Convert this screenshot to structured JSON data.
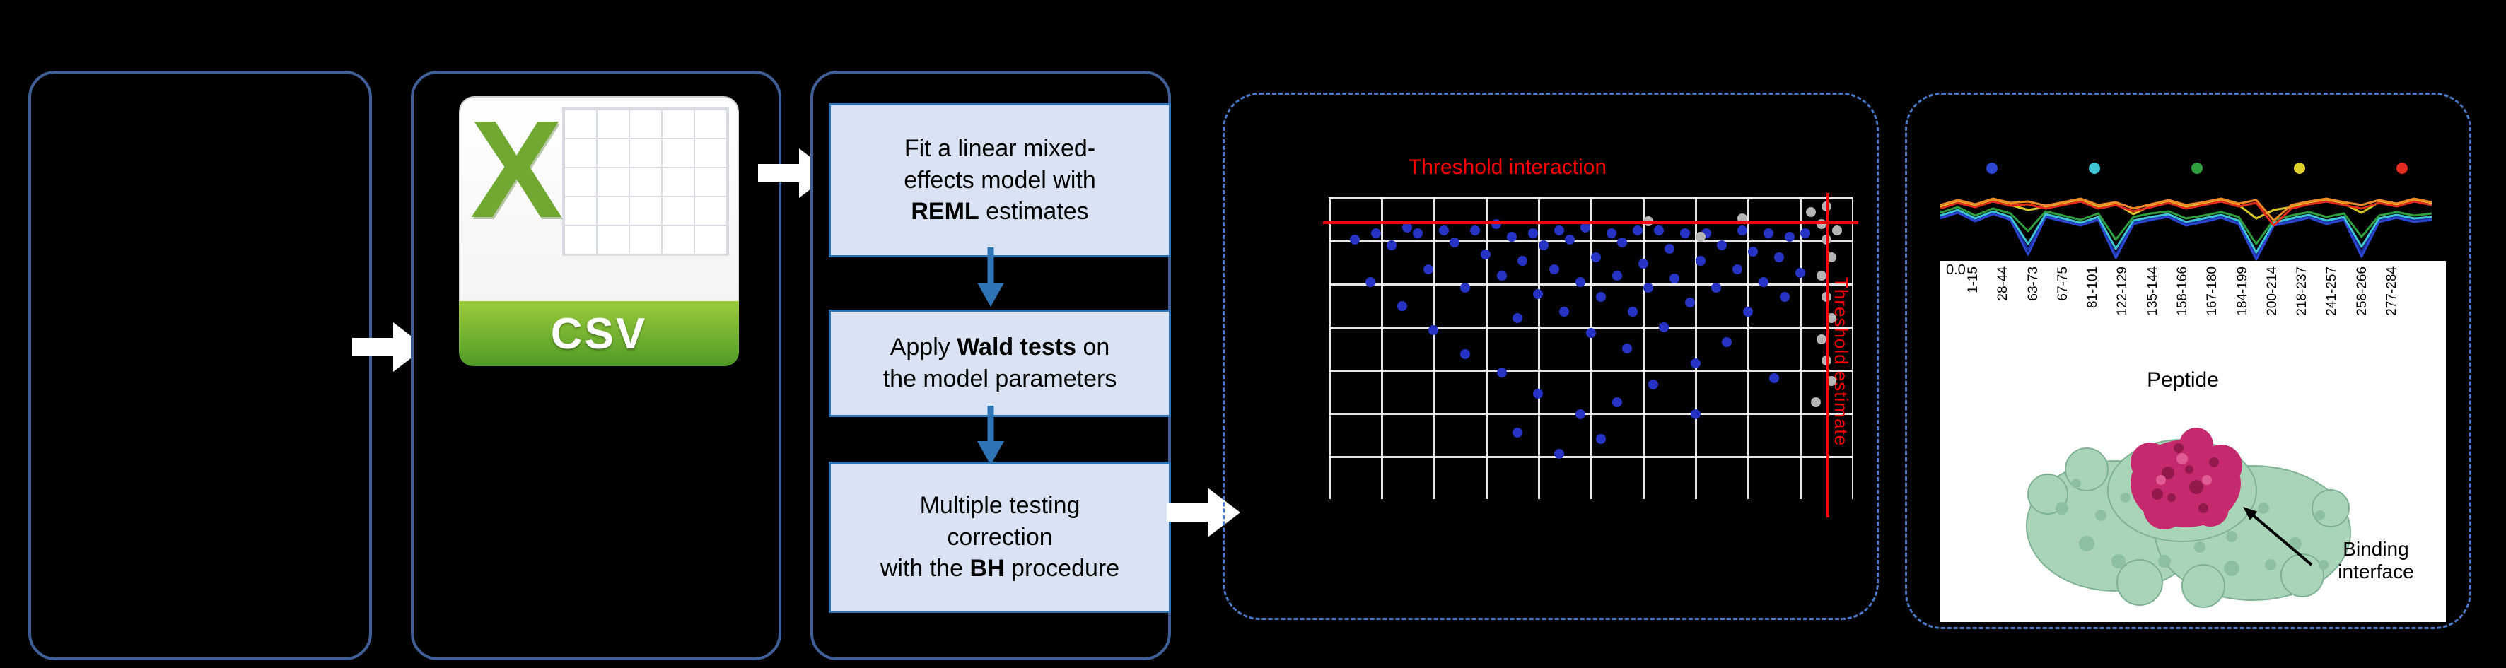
{
  "colors": {
    "background": "#000000",
    "panel_border": "#3f5f96",
    "dashed_border": "#4b79c9",
    "step_fill": "#dae3f3",
    "step_border": "#2e74b5",
    "flow_arrow": "#ffffff",
    "threshold": "#ff0000",
    "csv_green": "#70a832"
  },
  "flow": {
    "csv_icon": {
      "letter": "X",
      "label": "CSV"
    },
    "model_box": {
      "steps": [
        {
          "segments": [
            [
              {
                "t": "Fit a linear mixed-"
              }
            ],
            [
              {
                "t": "effects model with"
              }
            ],
            [
              {
                "t": "REML",
                "b": true
              },
              {
                "t": " estimates"
              }
            ]
          ]
        },
        {
          "segments": [
            [
              {
                "t": "Apply "
              },
              {
                "t": "Wald tests",
                "b": true
              },
              {
                "t": " on"
              }
            ],
            [
              {
                "t": "the model parameters"
              }
            ]
          ]
        },
        {
          "segments": [
            [
              {
                "t": "Multiple testing"
              }
            ],
            [
              {
                "t": "correction"
              }
            ],
            [
              {
                "t": "with the "
              },
              {
                "t": "BH",
                "b": true
              },
              {
                "t": " procedure"
              }
            ]
          ]
        }
      ]
    }
  },
  "chart_data": [
    {
      "type": "scatter",
      "title": "Threshold interaction",
      "side_label": "Threshold estimate",
      "grid": true,
      "colors": {
        "significant": "#2633c4",
        "nonsignificant": "#b5b5b5",
        "threshold": "#ff0000",
        "grid": "#ffffff"
      },
      "threshold_h_pct": 8,
      "threshold_v_pct": 95,
      "points_significant": [
        [
          5,
          14
        ],
        [
          9,
          12
        ],
        [
          12,
          16
        ],
        [
          15,
          10
        ],
        [
          17,
          12
        ],
        [
          19,
          24
        ],
        [
          22,
          11
        ],
        [
          24,
          15
        ],
        [
          26,
          30
        ],
        [
          28,
          11
        ],
        [
          30,
          19
        ],
        [
          32,
          9
        ],
        [
          33,
          26
        ],
        [
          35,
          13
        ],
        [
          36,
          40
        ],
        [
          37,
          21
        ],
        [
          39,
          12
        ],
        [
          40,
          32
        ],
        [
          41,
          16
        ],
        [
          43,
          24
        ],
        [
          44,
          11
        ],
        [
          45,
          38
        ],
        [
          46,
          14
        ],
        [
          48,
          28
        ],
        [
          49,
          10
        ],
        [
          50,
          45
        ],
        [
          51,
          20
        ],
        [
          52,
          33
        ],
        [
          54,
          12
        ],
        [
          55,
          26
        ],
        [
          56,
          15
        ],
        [
          57,
          50
        ],
        [
          58,
          38
        ],
        [
          59,
          11
        ],
        [
          60,
          22
        ],
        [
          61,
          30
        ],
        [
          63,
          11
        ],
        [
          64,
          43
        ],
        [
          65,
          17
        ],
        [
          66,
          27
        ],
        [
          68,
          12
        ],
        [
          69,
          35
        ],
        [
          70,
          55
        ],
        [
          71,
          21
        ],
        [
          72,
          12
        ],
        [
          74,
          30
        ],
        [
          75,
          16
        ],
        [
          76,
          48
        ],
        [
          78,
          24
        ],
        [
          79,
          11
        ],
        [
          80,
          38
        ],
        [
          81,
          18
        ],
        [
          83,
          28
        ],
        [
          84,
          12
        ],
        [
          85,
          60
        ],
        [
          86,
          20
        ],
        [
          87,
          33
        ],
        [
          88,
          13
        ],
        [
          90,
          25
        ],
        [
          91,
          12
        ],
        [
          26,
          52
        ],
        [
          33,
          58
        ],
        [
          40,
          65
        ],
        [
          48,
          72
        ],
        [
          55,
          68
        ],
        [
          36,
          78
        ],
        [
          44,
          85
        ],
        [
          20,
          44
        ],
        [
          14,
          36
        ],
        [
          8,
          28
        ],
        [
          62,
          62
        ],
        [
          70,
          72
        ],
        [
          52,
          80
        ]
      ],
      "points_nonsignificant": [
        [
          92,
          5
        ],
        [
          94,
          9
        ],
        [
          95,
          14
        ],
        [
          96,
          20
        ],
        [
          94,
          26
        ],
        [
          95,
          33
        ],
        [
          96,
          40
        ],
        [
          94,
          47
        ],
        [
          95,
          54
        ],
        [
          96,
          61
        ],
        [
          93,
          68
        ],
        [
          97,
          11
        ],
        [
          61,
          8
        ],
        [
          71,
          13
        ],
        [
          79,
          7
        ],
        [
          95,
          3
        ]
      ]
    },
    {
      "type": "line",
      "y_tick": "0.0",
      "x_axis_title": "Peptide",
      "annotation": "Binding interface",
      "x_labels": [
        "1-15",
        "28-44",
        "63-73",
        "67-75",
        "81-101",
        "122-129",
        "135-144",
        "158-166",
        "167-180",
        "184-199",
        "200-214",
        "218-237",
        "241-257",
        "258-266",
        "277-284"
      ],
      "dot_colors": [
        "#2a46d2",
        "#3fc4d4",
        "#2f9e3f",
        "#ddd028",
        "#e32b1e"
      ],
      "series": [
        {
          "name": "navy",
          "color": "#1b2d9b",
          "y": [
            50,
            42,
            54,
            44,
            52,
            96,
            48,
            54,
            60,
            52,
            104,
            57,
            52,
            48,
            59,
            54,
            49,
            57,
            106,
            60,
            54,
            49,
            57,
            52,
            100,
            54,
            49,
            54,
            52
          ]
        },
        {
          "name": "blue",
          "color": "#2a46d2",
          "y": [
            52,
            44,
            56,
            46,
            54,
            103,
            50,
            56,
            62,
            54,
            108,
            60,
            54,
            50,
            62,
            57,
            51,
            60,
            110,
            62,
            57,
            51,
            60,
            54,
            106,
            57,
            51,
            57,
            54
          ]
        },
        {
          "name": "cyan",
          "color": "#3fc4d4",
          "y": [
            48,
            40,
            52,
            42,
            50,
            88,
            46,
            52,
            58,
            50,
            95,
            55,
            50,
            46,
            57,
            52,
            47,
            55,
            100,
            58,
            52,
            47,
            55,
            50,
            92,
            52,
            47,
            52,
            50
          ]
        },
        {
          "name": "green",
          "color": "#2f9e3f",
          "y": [
            44,
            36,
            48,
            38,
            45,
            70,
            42,
            48,
            54,
            45,
            82,
            50,
            45,
            42,
            52,
            48,
            43,
            50,
            88,
            54,
            48,
            43,
            50,
            45,
            78,
            48,
            43,
            48,
            45
          ]
        },
        {
          "name": "yellow",
          "color": "#d9c928",
          "y": [
            36,
            29,
            35,
            27,
            33,
            40,
            36,
            31,
            27,
            36,
            31,
            46,
            34,
            29,
            36,
            31,
            27,
            33,
            52,
            40,
            36,
            30,
            27,
            31,
            44,
            29,
            33,
            27,
            31
          ]
        },
        {
          "name": "orange",
          "color": "#f08a24",
          "y": [
            33,
            26,
            32,
            24,
            30,
            28,
            34,
            29,
            24,
            33,
            29,
            38,
            32,
            26,
            33,
            29,
            24,
            31,
            26,
            55,
            33,
            28,
            24,
            29,
            33,
            26,
            31,
            24,
            29
          ]
        },
        {
          "name": "red",
          "color": "#e32b1e",
          "y": [
            38,
            30,
            36,
            28,
            34,
            32,
            38,
            33,
            28,
            38,
            33,
            42,
            36,
            30,
            38,
            33,
            28,
            35,
            30,
            62,
            38,
            32,
            28,
            33,
            38,
            30,
            35,
            28,
            33
          ]
        }
      ]
    }
  ]
}
